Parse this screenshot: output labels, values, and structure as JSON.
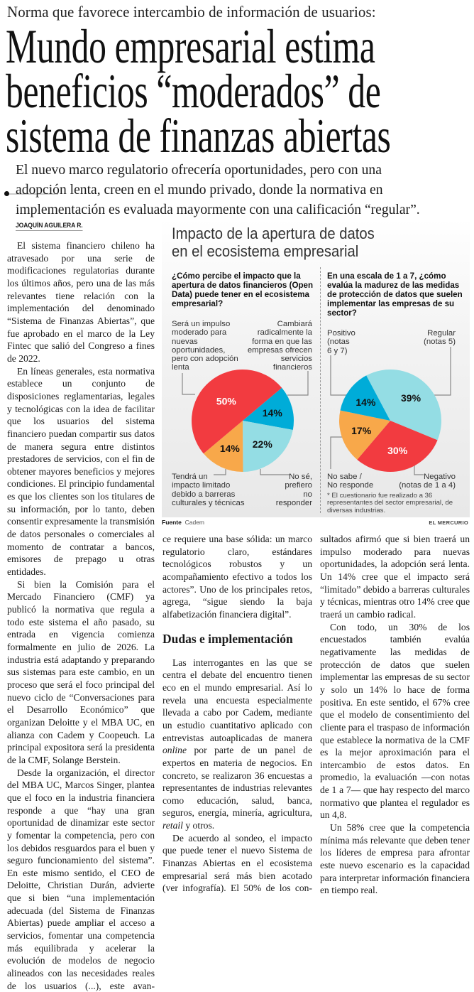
{
  "article": {
    "kicker": "Norma que favorece intercambio de información de usuarios:",
    "headline_lines": [
      "Mundo empresarial estima",
      "beneficios “moderados” de",
      "sistema de finanzas abiertas"
    ],
    "deck_lines": [
      "El nuevo marco regulatorio ofrecería oportunidades, pero con una",
      "adopción lenta, creen en el mundo privado, donde la normativa en",
      "implementación es evaluada mayormente con una calificación “regular”."
    ],
    "byline": "JOAQUÍN AGUILERA R.",
    "left_paragraphs": [
      "El sistema financiero chileno ha atravesado por una serie de modificaciones regulatorias durante los últimos años, pero una de las más relevantes tiene relación con la implementación del denominado “Sistema de Finanzas Abiertas”, que fue aprobado en el marco de la Ley Fintec que salió del Congreso a fines de 2022.",
      "En líneas generales, esta normativa establece un conjunto de disposiciones reglamentarias, legales y tecnológicas con la idea de facilitar que los usuarios del sistema financiero puedan compartir sus datos de manera segura entre distintos prestadores de servicios, con el fin de obtener mayores beneficios y mejores condiciones. El principio fundamental es que los clientes son los titulares de su información, por lo tanto, deben consentir expresamente la transmisión de datos personales o comerciales al momento de contratar a bancos, emisores de prepago u otras entidades.",
      "Si bien la Comisión para el Mercado Financiero (CMF) ya publicó la normativa que regula a todo este sistema el año pasado, su entrada en vigencia comienza formalmente en julio de 2026. La industria está adaptando y preparando sus sistemas para este cambio, en un proceso que será el foco principal del nuevo ciclo de “Conversaciones para el Desarrollo Económico” que organizan Deloitte y el MBA UC, en alianza con Cadem y Coopeuch. La principal expositora será la presidenta de la CMF, Solange Berstein.",
      "Desde la organización, el director del MBA UC, Marcos Singer, plantea que el foco en la industria financiera responde a que “hay una gran oportunidad de dinamizar este sector y fomentar la competencia, pero con los debidos resguardos para el buen y seguro funcionamiento del sistema”. En este mismo sentido, el CEO de Deloitte, Christian Durán, advierte que si bien “una implementación adecuada (del Sistema de Finanzas Abiertas) puede ampliar el acceso a servicios, fomentar una competencia más equilibrada y acelerar la evolución de modelos de negocio alineados con las necesidades reales de los usuarios (...), este avan-"
    ],
    "middle_continuation": "ce requiere una base sólida: un marco regulatorio claro, estándares tecnológicos robustos y un acompañamiento efectivo a todos los actores”. Uno de los principales retos, agrega, “sigue siendo la baja alfabetización financiera digital”.",
    "subheading": "Dudas e implementación",
    "middle_p1_segments": [
      "Las interrogantes en las que se centra el debate del encuentro tienen eco en el mundo empresarial. Así lo revela una encuesta especialmente llevada a cabo por Cadem, mediante un estudio cuantitativo aplicado con entrevistas autoaplicadas de manera ",
      "online",
      " por parte de un panel de expertos en materia de negocios. En concreto, se realizaron 36 encuestas a representantes de industrias relevantes como educación, salud, banca, seguros, energía, minería, agricultura, ",
      "retail",
      " y otros."
    ],
    "middle_p2": "De acuerdo al sondeo, el impacto que puede tener el nuevo Sistema de Finanzas Abiertas en el ecosistema empresarial será más bien acotado (ver infografía). El 50% de los con-",
    "right_paragraphs": [
      "sultados afirmó que si bien traerá un impulso moderado para nuevas oportunidades, la adopción será lenta. Un 14% cree que el impacto será “limitado” debido a barreras culturales y técnicas, mientras otro 14% cree que traerá un cambio radical.",
      "Con todo, un 30% de los encuestados también evalúa negativamente las medidas de protección de datos que suelen implementar las empresas de su sector y solo un 14% lo hace de forma positiva. En este sentido, el 67% cree que el modelo de consentimiento del cliente para el traspaso de información que establece la normativa de la CMF es la mejor aproximación para el intercambio de estos datos. En promedio, la evaluación —con notas de 1 a 7— que hay respecto del marco normativo que plantea el regulador es un 4,8.",
      "Un 58% cree que la competencia mínima más relevante que deben tener los líderes de empresa para afrontar este nuevo escenario es la capacidad para interpretar información financiera en tiempo real."
    ]
  },
  "infographic": {
    "title_lines": [
      "Impacto de la apertura de datos",
      "en el ecosistema empresarial"
    ],
    "source_label": "Fuente",
    "source": "Cadem",
    "brand": "EL MERCURIO",
    "footnote": [
      "* El cuestionario fue realizado a 36",
      "representantes del sector empresarial, de",
      "diversas industrias."
    ]
  },
  "chart_data": [
    {
      "type": "pie",
      "title": "¿Cómo percibe el impacto que la apertura de datos financieros (Open Data) puede tener en el ecosistema empresarial?",
      "title_lines": [
        "¿Cómo percibe el impacto que la",
        "apertura de datos financieros (Open",
        "Data) puede tener en el ecosistema",
        "empresarial?"
      ],
      "start_angle_deg": 50,
      "slices": [
        {
          "label": "Cambiará radicalmente la forma en que las empresas ofrecen servicios financieros",
          "label_lines": [
            "Cambiará",
            "radicalmente la",
            "forma en que las",
            "empresas ofrecen",
            "servicios",
            "financieros"
          ],
          "value": 14,
          "text": "14%",
          "color": "#00acd8",
          "text_color": "#111111"
        },
        {
          "label": "No sé, prefiero no responder",
          "label_lines": [
            "No sé,",
            "prefiero",
            "no",
            "responder"
          ],
          "value": 22,
          "text": "22%",
          "color": "#94dde4",
          "text_color": "#111111"
        },
        {
          "label": "Tendrá un impacto limitado debido a barreras culturales y técnicas",
          "label_lines": [
            "Tendrá un",
            "impacto limitado",
            "debido a barreras",
            "culturales y técnicas"
          ],
          "value": 14,
          "text": "14%",
          "color": "#f8a84a",
          "text_color": "#111111"
        },
        {
          "label": "Será un impulso moderado para nuevas oportunidades, pero con adopción lenta",
          "label_lines": [
            "Será un impulso",
            "moderado para",
            "nuevas",
            "oportunidades,",
            "pero con adopción",
            "lenta"
          ],
          "value": 50,
          "text": "50%",
          "color": "#f23b40",
          "text_color": "#ffffff"
        }
      ]
    },
    {
      "type": "pie",
      "title": "En una escala de 1 a 7, ¿cómo evalúa la madurez de las medidas de protección de datos que suelen implementar las empresas de su sector?",
      "title_lines": [
        "En una escala de 1 a 7, ¿cómo",
        "evalúa la madurez de las medidas",
        "de protección de datos que suelen",
        "implementar las empresas de su",
        "sector?"
      ],
      "start_angle_deg": -28,
      "slices": [
        {
          "label": "Regular (notas 5)",
          "label_lines": [
            "Regular",
            "(notas 5)"
          ],
          "value": 39,
          "text": "39%",
          "color": "#94dde4",
          "text_color": "#111111"
        },
        {
          "label": "Negativo (notas de 1 a 4)",
          "label_lines": [
            "Negativo",
            "(notas de 1 a 4)"
          ],
          "value": 30,
          "text": "30%",
          "color": "#f23b40",
          "text_color": "#ffffff"
        },
        {
          "label": "No sabe / No responde",
          "label_lines": [
            "No sabe /",
            "No responde"
          ],
          "value": 17,
          "text": "17%",
          "color": "#f8a84a",
          "text_color": "#111111"
        },
        {
          "label": "Positivo (notas 6 y 7)",
          "label_lines": [
            "Positivo",
            "(notas",
            "6 y 7)"
          ],
          "value": 14,
          "text": "14%",
          "color": "#00acd8",
          "text_color": "#111111"
        }
      ]
    }
  ]
}
